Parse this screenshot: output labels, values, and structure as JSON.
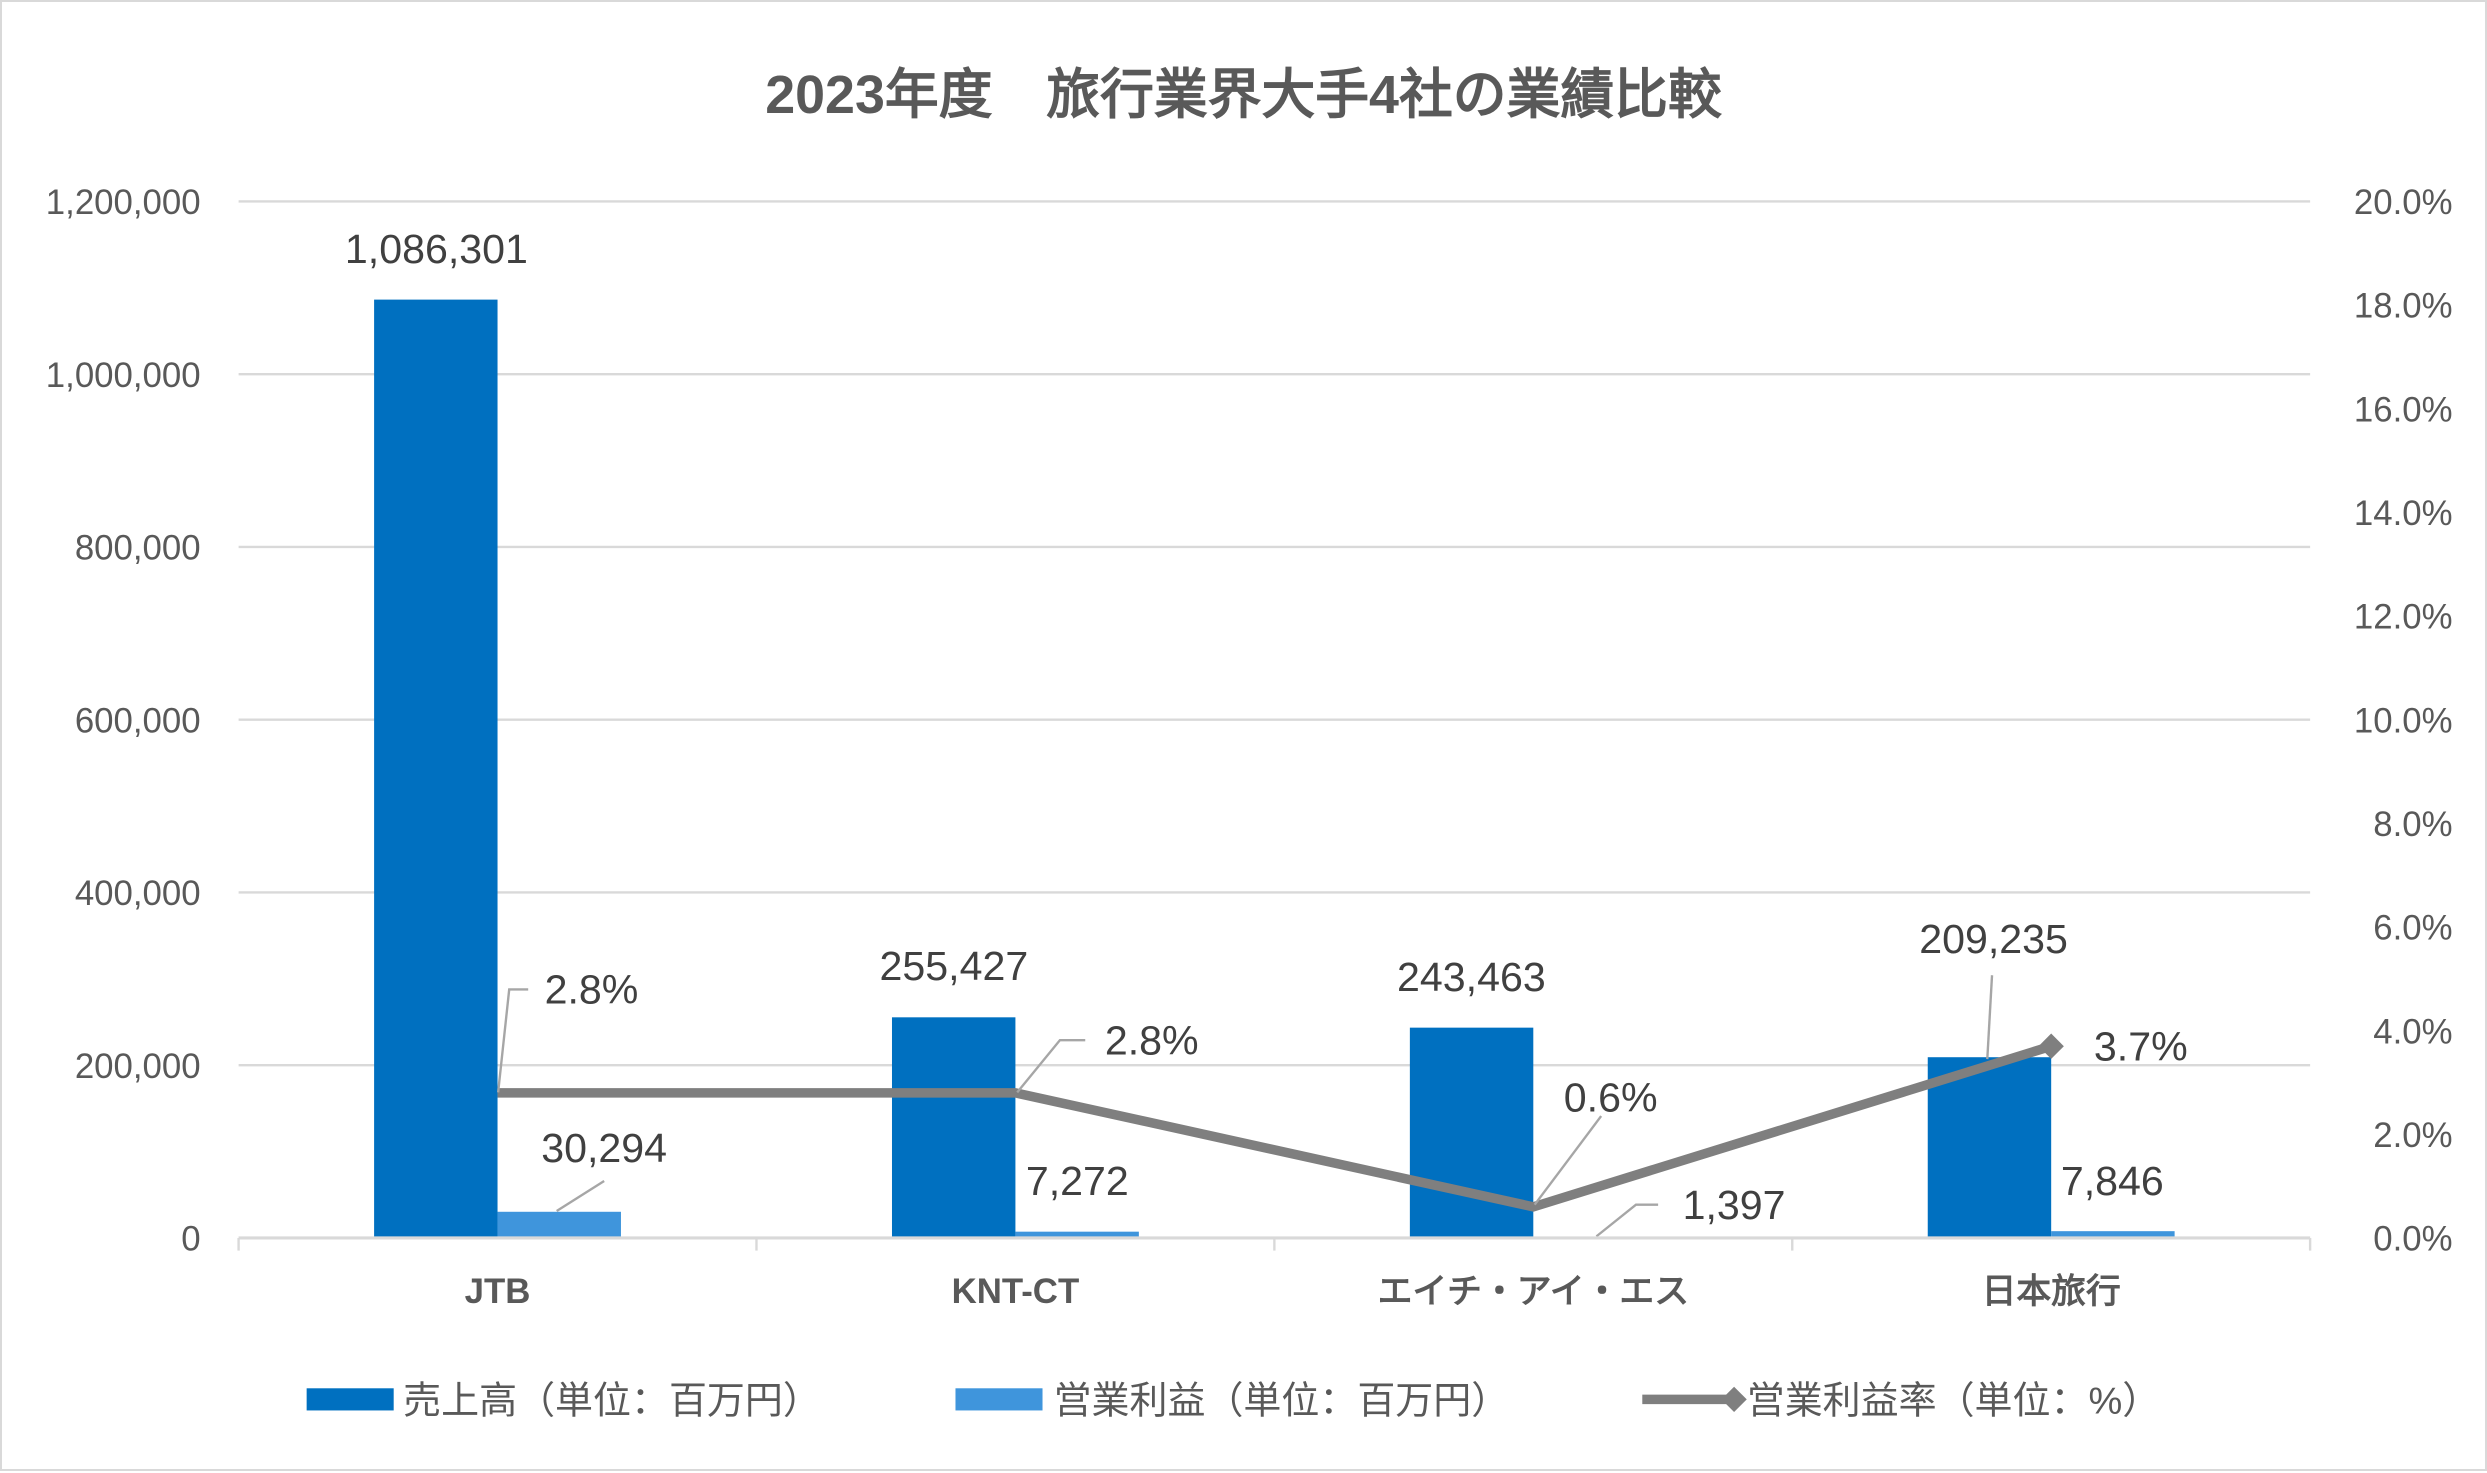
{
  "chart_data": {
    "type": "bar",
    "title": "2023年度　旅行業界大手4社の業績比較",
    "categories": [
      "JTB",
      "KNT-CT",
      "エイチ・アイ・エス",
      "日本旅行"
    ],
    "series": [
      {
        "name": "売上高（単位：百万円）",
        "type": "bar",
        "axis": "left",
        "color": "#0070C0",
        "values": [
          1086301,
          255427,
          243463,
          209235
        ],
        "labels": [
          "1,086,301",
          "255,427",
          "243,463",
          "209,235"
        ]
      },
      {
        "name": "営業利益（単位：百万円）",
        "type": "bar",
        "axis": "left",
        "color": "#3F95DC",
        "values": [
          30294,
          7272,
          1397,
          7846
        ],
        "labels": [
          "30,294",
          "7,272",
          "1,397",
          "7,846"
        ]
      },
      {
        "name": "営業利益率（単位：%）",
        "type": "line",
        "axis": "right",
        "color": "#7F7F7F",
        "values": [
          2.8,
          2.8,
          0.6,
          3.7
        ],
        "labels": [
          "2.8%",
          "2.8%",
          "0.6%",
          "3.7%"
        ]
      }
    ],
    "yleft": {
      "lim": [
        0,
        1200000
      ],
      "ticks": [
        "0",
        "200,000",
        "400,000",
        "600,000",
        "800,000",
        "1,000,000",
        "1,200,000"
      ]
    },
    "yright": {
      "lim": [
        0,
        20
      ],
      "ticks": [
        "0.0%",
        "2.0%",
        "4.0%",
        "6.0%",
        "8.0%",
        "10.0%",
        "12.0%",
        "14.0%",
        "16.0%",
        "18.0%",
        "20.0%"
      ]
    },
    "grid": true,
    "legend": "bottom"
  }
}
